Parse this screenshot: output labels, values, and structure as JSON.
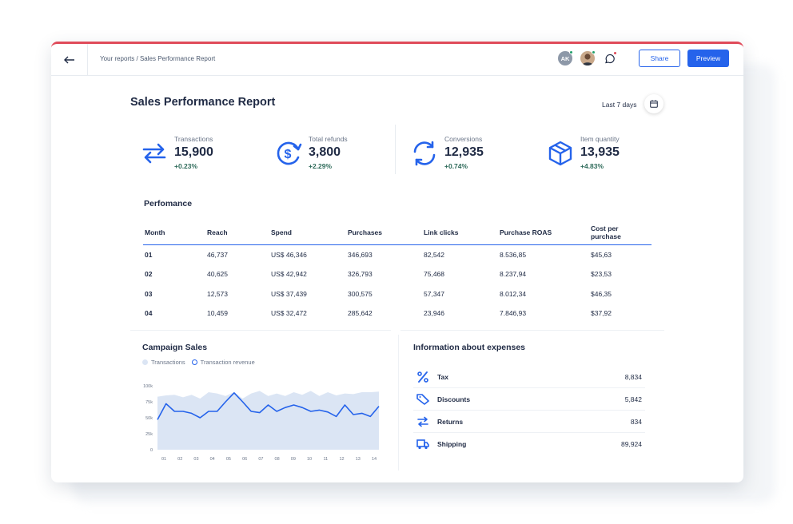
{
  "breadcrumb": "Your reports / Sales Performance Report",
  "header": {
    "avatar_initials": "AK",
    "share_label": "Share",
    "preview_label": "Preview"
  },
  "report": {
    "title": "Sales Performance Report",
    "date_range": "Last 7 days"
  },
  "kpis": [
    {
      "label": "Transactions",
      "value": "15,900",
      "change": "+0.23%",
      "icon": "transfer-arrows-icon"
    },
    {
      "label": "Total refunds",
      "value": "3,800",
      "change": "+2.29%",
      "icon": "dollar-refresh-icon"
    },
    {
      "label": "Conversions",
      "value": "12,935",
      "change": "+0.74%",
      "icon": "sync-icon"
    },
    {
      "label": "Item quantity",
      "value": "13,935",
      "change": "+4.83%",
      "icon": "box-icon"
    }
  ],
  "performance": {
    "title": "Perfomance",
    "columns": [
      "Month",
      "Reach",
      "Spend",
      "Purchases",
      "Link clicks",
      "Purchase ROAS",
      "Cost per purchase"
    ],
    "rows": [
      [
        "01",
        "46,737",
        "US$ 46,346",
        "346,693",
        "82,542",
        "8.536,85",
        "$45,63"
      ],
      [
        "02",
        "40,625",
        "US$ 42,942",
        "326,793",
        "75,468",
        "8.237,94",
        "$23,53"
      ],
      [
        "03",
        "12,573",
        "US$ 37,439",
        "300,575",
        "57,347",
        "8.012,34",
        "$46,35"
      ],
      [
        "04",
        "10,459",
        "US$ 32,472",
        "285,642",
        "23,946",
        "7.846,93",
        "$37,92"
      ]
    ]
  },
  "campaign": {
    "title": "Campaign Sales",
    "legend": [
      "Transactions",
      "Transaction revenue"
    ]
  },
  "chart_data": {
    "type": "line",
    "x": [
      "01",
      "",
      "02",
      "",
      "03",
      "",
      "04",
      "",
      "05",
      "",
      "06",
      "",
      "07",
      "",
      "08",
      "",
      "09",
      "",
      "10",
      "",
      "11",
      "",
      "12",
      "",
      "13",
      "",
      "14"
    ],
    "xticks": [
      "01",
      "02",
      "03",
      "04",
      "05",
      "06",
      "07",
      "08",
      "09",
      "10",
      "11",
      "12",
      "13",
      "14"
    ],
    "yticks": [
      "0",
      "25k",
      "50k",
      "75k",
      "100k"
    ],
    "ylim": [
      0,
      100000
    ],
    "series": [
      {
        "name": "Transactions",
        "type": "area",
        "color": "#dbe5f4",
        "values": [
          83000,
          85000,
          86000,
          82000,
          86000,
          80000,
          90000,
          88000,
          84000,
          90000,
          80000,
          88000,
          92000,
          84000,
          88000,
          84000,
          90000,
          86000,
          92000,
          84000,
          90000,
          85000,
          88000,
          87000,
          90000,
          90000,
          91000
        ]
      },
      {
        "name": "Transaction revenue",
        "type": "line",
        "color": "#2563eb",
        "values": [
          47000,
          72000,
          60000,
          60000,
          57000,
          50000,
          60000,
          60000,
          75000,
          89000,
          75000,
          60000,
          58000,
          70000,
          60000,
          66000,
          70000,
          66000,
          60000,
          62000,
          59000,
          52000,
          70000,
          55000,
          57000,
          52000,
          68000
        ]
      }
    ]
  },
  "expenses": {
    "title": "Information about expenses",
    "items": [
      {
        "label": "Tax",
        "value": "8,834",
        "icon": "percent-icon"
      },
      {
        "label": "Discounts",
        "value": "5,842",
        "icon": "tag-icon"
      },
      {
        "label": "Returns",
        "value": "834",
        "icon": "swap-arrows-icon"
      },
      {
        "label": "Shipping",
        "value": "89,924",
        "icon": "truck-icon"
      }
    ]
  },
  "colors": {
    "accent": "#2563eb",
    "positive": "#2e6b5a",
    "alert": "#e04b5a",
    "online": "#22a06b"
  }
}
